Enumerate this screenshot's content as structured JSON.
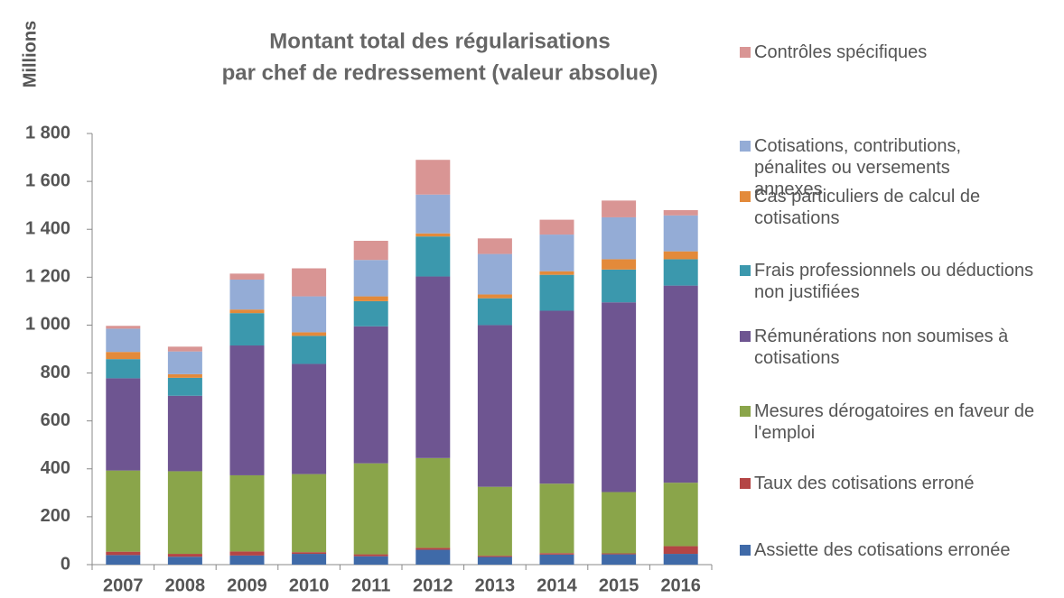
{
  "chart_data": {
    "type": "stacked_bar",
    "title": "Montant total des régularisations",
    "subtitle": "par chef de redressement (valeur absolue)",
    "ylabel": "Millions",
    "categories": [
      "2007",
      "2008",
      "2009",
      "2010",
      "2011",
      "2012",
      "2013",
      "2014",
      "2015",
      "2016"
    ],
    "ylim": [
      0,
      1800
    ],
    "yticks": [
      0,
      200,
      400,
      600,
      800,
      {
        "value": 1000,
        "label": "1 000"
      },
      {
        "value": 1200,
        "label": "1 200"
      },
      {
        "value": 1400,
        "label": "1 400"
      },
      {
        "value": 1600,
        "label": "1 600"
      },
      {
        "value": 1800,
        "label": "1 800"
      }
    ],
    "grid": false,
    "legend": "right",
    "series": [
      {
        "name": "Assiette des cotisations erronée",
        "color": "#3f6aa8",
        "values": [
          40,
          33,
          38,
          45,
          35,
          62,
          32,
          42,
          43,
          45
        ]
      },
      {
        "name": "Taux des cotisations erroné",
        "color": "#b44545",
        "values": [
          14,
          12,
          17,
          7,
          8,
          8,
          5,
          6,
          4,
          32
        ]
      },
      {
        "name": "Mesures dérogatoires en faveur de l'emploi",
        "color": "#8aa54a",
        "values": [
          339,
          345,
          318,
          326,
          380,
          375,
          288,
          290,
          256,
          265
        ]
      },
      {
        "name": "Rémunérations non soumises à cotisations",
        "color": "#6e5591",
        "values": [
          385,
          315,
          542,
          460,
          572,
          758,
          675,
          722,
          792,
          823
        ]
      },
      {
        "name": "Frais professionnels ou déductions non justifiées",
        "color": "#3b98ad",
        "values": [
          80,
          75,
          135,
          117,
          105,
          167,
          112,
          150,
          137,
          110
        ]
      },
      {
        "name": "Cas particuliers de calcul de cotisations",
        "color": "#e38a3a",
        "values": [
          30,
          15,
          15,
          15,
          20,
          13,
          16,
          15,
          43,
          33
        ]
      },
      {
        "name": "Cotisations, contributions, pénalites ou versements annexes",
        "color": "#94acd6",
        "values": [
          97,
          95,
          125,
          150,
          152,
          162,
          169,
          153,
          175,
          150
        ]
      },
      {
        "name": "Contrôles spécifiques",
        "color": "#d99594",
        "values": [
          12,
          20,
          25,
          117,
          80,
          145,
          65,
          62,
          70,
          22
        ]
      }
    ]
  }
}
